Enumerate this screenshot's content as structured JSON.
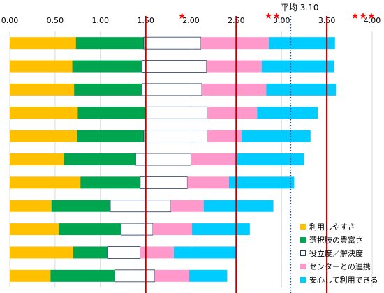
{
  "chart_data": {
    "type": "stacked-bar-horizontal",
    "xlim": [
      0,
      4
    ],
    "x_ticks": [
      "0.00",
      "0.50",
      "1.00",
      "1.50",
      "2.00",
      "2.50",
      "3.00",
      "3.50",
      "4.00"
    ],
    "series": [
      {
        "name": "利用しやすさ",
        "color": "#FFC000",
        "values": [
          0.73,
          0.69,
          0.71,
          0.75,
          0.74,
          0.6,
          0.78,
          0.46,
          0.54,
          0.7,
          0.45
        ]
      },
      {
        "name": "選択肢の豊富さ",
        "color": "#00A550",
        "values": [
          0.75,
          0.77,
          0.75,
          0.75,
          0.74,
          0.79,
          0.66,
          0.65,
          0.69,
          0.38,
          0.71
        ]
      },
      {
        "name": "役立度／解決度",
        "color": "#FFFFFF",
        "values": [
          0.63,
          0.71,
          0.66,
          0.68,
          0.7,
          0.61,
          0.52,
          0.67,
          0.35,
          0.36,
          0.44
        ]
      },
      {
        "name": "センターとの連携",
        "color": "#FF99CC",
        "values": [
          0.75,
          0.61,
          0.71,
          0.55,
          0.38,
          0.49,
          0.46,
          0.36,
          0.43,
          0.37,
          0.38
        ]
      },
      {
        "name": "安心して利用できる",
        "color": "#00CCFF",
        "values": [
          0.73,
          0.8,
          0.77,
          0.67,
          0.76,
          0.76,
          0.72,
          0.77,
          0.64,
          0.7,
          0.42
        ]
      }
    ],
    "reference_lines": [
      {
        "x": 1.5,
        "color": "#C00000",
        "marker": "★"
      },
      {
        "x": 2.5,
        "color": "#C00000",
        "marker": "★★"
      },
      {
        "x": 3.5,
        "color": "#C00000",
        "marker": "★★★"
      }
    ],
    "average_line": {
      "x": 3.1,
      "label": "平均 3.10",
      "color": "#1F4E99",
      "style": "dotted"
    },
    "legend_position": "bottom-right",
    "grid": true
  }
}
